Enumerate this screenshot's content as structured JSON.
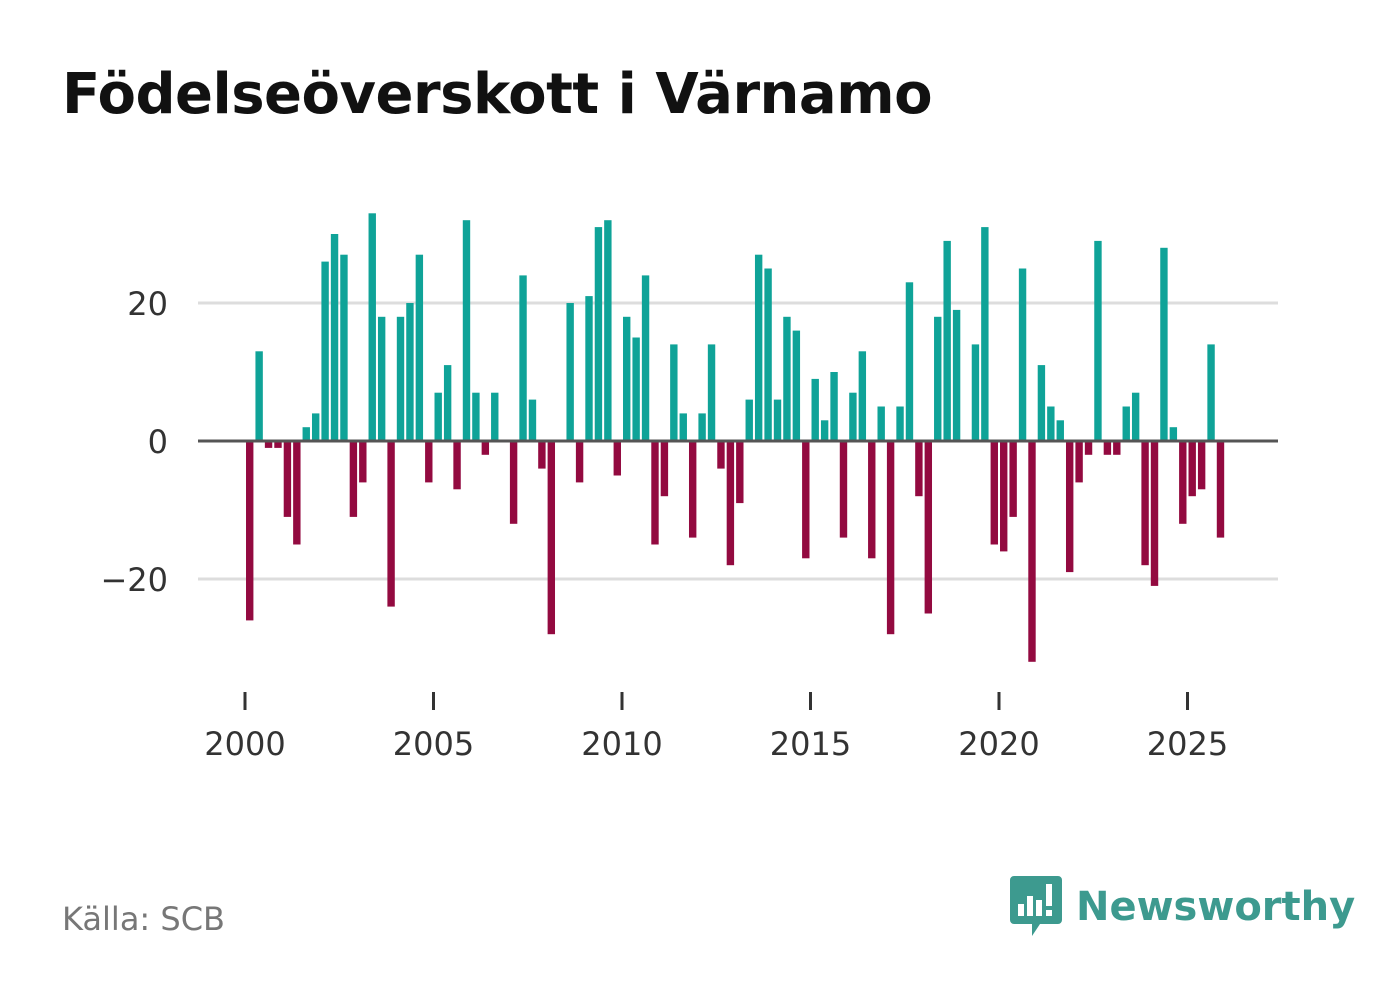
{
  "title": "Födelseöverskott i Värnamo",
  "source": "Källa: SCB",
  "brand": {
    "name": "Newsworthy",
    "icon": "newsworthy-logo-icon",
    "color": "#3d9a8f"
  },
  "colors": {
    "positive": "#0fa398",
    "negative": "#930a40",
    "grid": "#dddddd",
    "zero": "#555555",
    "axis": "#333333"
  },
  "chart_data": {
    "type": "bar",
    "title": "Födelseöverskott i Värnamo",
    "xlabel": "",
    "ylabel": "",
    "ylim": [
      -35,
      36
    ],
    "yticks": [
      -20,
      0,
      20
    ],
    "ytick_labels": [
      "−20",
      "0",
      "20"
    ],
    "xticks": [
      2000,
      2005,
      2010,
      2015,
      2020,
      2025
    ],
    "xtick_labels": [
      "2000",
      "2005",
      "2010",
      "2015",
      "2020",
      "2025"
    ],
    "start": 2000.0,
    "step": 0.25,
    "grid": true,
    "values": [
      -26,
      13,
      -1,
      -1,
      -11,
      -15,
      2,
      4,
      26,
      30,
      27,
      -11,
      -6,
      33,
      18,
      -24,
      18,
      20,
      27,
      -6,
      7,
      11,
      -7,
      32,
      7,
      -2,
      7,
      0,
      -12,
      24,
      6,
      -4,
      -28,
      0,
      20,
      -6,
      21,
      31,
      32,
      -5,
      18,
      15,
      24,
      -15,
      -8,
      14,
      4,
      -14,
      4,
      14,
      -4,
      -18,
      -9,
      6,
      27,
      25,
      6,
      18,
      16,
      -17,
      9,
      3,
      10,
      -14,
      7,
      13,
      -17,
      5,
      -28,
      5,
      23,
      -8,
      -25,
      18,
      29,
      19,
      0,
      14,
      31,
      -15,
      -16,
      -11,
      25,
      -32,
      11,
      5,
      3,
      -19,
      -6,
      -2,
      29,
      -2,
      -2,
      5,
      7,
      -18,
      -21,
      28,
      2,
      -12,
      -8,
      -7,
      14,
      -14
    ]
  }
}
